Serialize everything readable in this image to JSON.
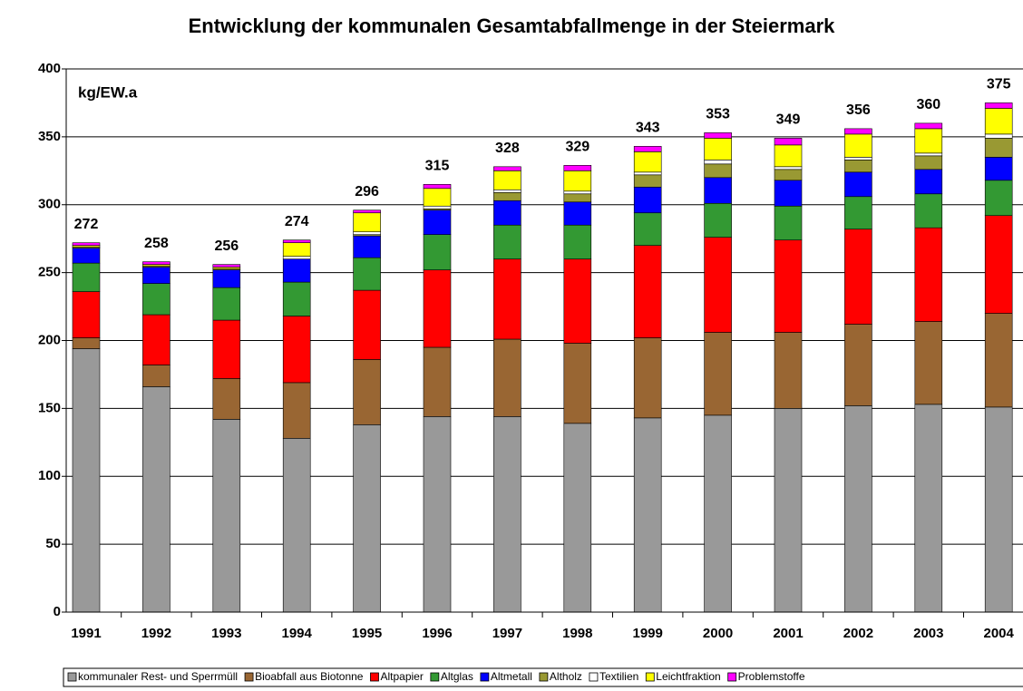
{
  "chart_data": {
    "type": "bar",
    "stacked": true,
    "title": "Entwicklung der kommunalen Gesamtabfallmenge in der Steiermark",
    "y_label": "kg/EW.a",
    "categories": [
      "1991",
      "1992",
      "1993",
      "1994",
      "1995",
      "1996",
      "1997",
      "1998",
      "1999",
      "2000",
      "2001",
      "2002",
      "2003",
      "2004"
    ],
    "series": [
      {
        "name": "kommunaler Rest- und Sperrmüll",
        "color": "#999999",
        "values": [
          194,
          166,
          142,
          128,
          138,
          144,
          144,
          139,
          143,
          145,
          150,
          152,
          153,
          151
        ]
      },
      {
        "name": "Bioabfall aus Biotonne",
        "color": "#996633",
        "values": [
          8,
          16,
          30,
          41,
          48,
          51,
          57,
          59,
          59,
          61,
          56,
          60,
          61,
          69
        ]
      },
      {
        "name": "Altpapier",
        "color": "#ff0000",
        "values": [
          34,
          37,
          43,
          49,
          51,
          57,
          59,
          62,
          68,
          70,
          68,
          70,
          69,
          72
        ]
      },
      {
        "name": "Altglas",
        "color": "#339933",
        "values": [
          21,
          23,
          24,
          25,
          24,
          26,
          25,
          25,
          24,
          25,
          25,
          24,
          25,
          26
        ]
      },
      {
        "name": "Altmetall",
        "color": "#0000ff",
        "values": [
          11,
          12,
          13,
          17,
          16,
          18,
          18,
          17,
          19,
          19,
          19,
          18,
          18,
          17
        ]
      },
      {
        "name": "Altholz",
        "color": "#999933",
        "values": [
          1,
          1,
          1,
          0,
          1,
          1,
          6,
          6,
          9,
          10,
          8,
          9,
          10,
          14
        ]
      },
      {
        "name": "Textilien",
        "color": "#ffffff",
        "values": [
          0,
          0,
          0,
          2,
          2,
          2,
          2,
          2,
          2,
          3,
          2,
          2,
          2,
          3
        ]
      },
      {
        "name": "Leichtfraktion",
        "color": "#ffff00",
        "values": [
          1,
          1,
          1,
          10,
          14,
          13,
          14,
          15,
          15,
          16,
          16,
          17,
          18,
          19
        ]
      },
      {
        "name": "Problemstoffe",
        "color": "#ff00ff",
        "values": [
          2,
          2,
          2,
          2,
          2,
          3,
          3,
          4,
          4,
          4,
          5,
          4,
          4,
          4
        ]
      }
    ],
    "totals": [
      272,
      258,
      256,
      274,
      296,
      315,
      328,
      329,
      343,
      353,
      349,
      356,
      360,
      375
    ],
    "ylim": [
      0,
      400
    ],
    "yticks": [
      0,
      50,
      100,
      150,
      200,
      250,
      300,
      350,
      400
    ],
    "grid": true
  }
}
